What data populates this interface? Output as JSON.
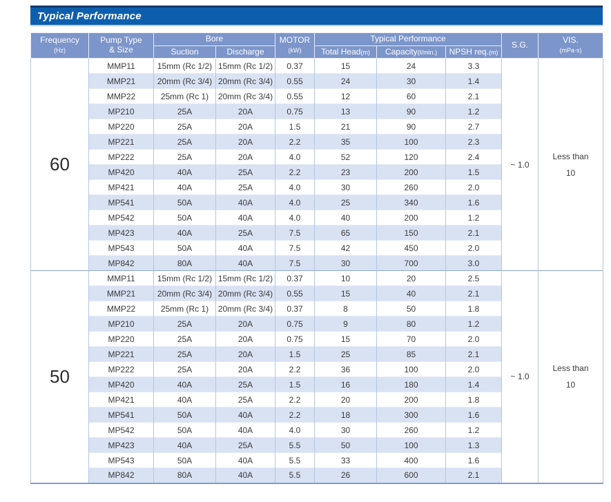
{
  "title_bar": {
    "text": "Typical Performance"
  },
  "table": {
    "headers": {
      "frequency": "Frequency",
      "frequency_unit": "(Hz)",
      "pump_type_line1": "Pump Type",
      "pump_type_line2": "& Size",
      "bore": "Bore",
      "suction": "Suction",
      "discharge": "Discharge",
      "motor": "MOTOR",
      "motor_unit": "(kW)",
      "typical_performance": "Typical Performance",
      "total_head": "Total Head",
      "total_head_unit": "(m)",
      "capacity": "Capacity",
      "capacity_unit": "(ℓ/min.)",
      "npsh": "NPSH req.",
      "npsh_unit": "(m)",
      "sg": "S.G.",
      "vis": "VIS.",
      "vis_unit": "(mPa·s)"
    },
    "columns": [
      "model",
      "suction",
      "discharge",
      "motor_kw",
      "total_head_m",
      "capacity_l_min",
      "npsh_req_m"
    ],
    "sections": [
      {
        "frequency": "60",
        "sg": "~ 1.0",
        "vis_line1": "Less than",
        "vis_line2": "10",
        "rows": [
          [
            "MMP11",
            "15mm (Rc 1/2)",
            "15mm (Rc 1/2)",
            "0.37",
            "15",
            "24",
            "3.3"
          ],
          [
            "MMP21",
            "20mm (Rc 3/4)",
            "20mm (Rc 3/4)",
            "0.55",
            "24",
            "30",
            "1.4"
          ],
          [
            "MMP22",
            "25mm (Rc 1)",
            "20mm (Rc 3/4)",
            "0.55",
            "12",
            "60",
            "2.1"
          ],
          [
            "MP210",
            "25A",
            "20A",
            "0.75",
            "13",
            "90",
            "1.2"
          ],
          [
            "MP220",
            "25A",
            "20A",
            "1.5",
            "21",
            "90",
            "2.7"
          ],
          [
            "MP221",
            "25A",
            "20A",
            "2.2",
            "35",
            "100",
            "2.3"
          ],
          [
            "MP222",
            "25A",
            "20A",
            "4.0",
            "52",
            "120",
            "2.4"
          ],
          [
            "MP420",
            "40A",
            "25A",
            "2.2",
            "23",
            "200",
            "1.5"
          ],
          [
            "MP421",
            "40A",
            "25A",
            "4.0",
            "30",
            "260",
            "2.0"
          ],
          [
            "MP541",
            "50A",
            "40A",
            "4.0",
            "25",
            "340",
            "1.6"
          ],
          [
            "MP542",
            "50A",
            "40A",
            "4.0",
            "40",
            "200",
            "1.2"
          ],
          [
            "MP423",
            "40A",
            "25A",
            "7.5",
            "65",
            "150",
            "2.1"
          ],
          [
            "MP543",
            "50A",
            "40A",
            "7.5",
            "42",
            "450",
            "2.0"
          ],
          [
            "MP842",
            "80A",
            "40A",
            "7.5",
            "30",
            "700",
            "3.0"
          ]
        ]
      },
      {
        "frequency": "50",
        "sg": "~ 1.0",
        "vis_line1": "Less than",
        "vis_line2": "10",
        "rows": [
          [
            "MMP11",
            "15mm (Rc 1/2)",
            "15mm (Rc 1/2)",
            "0.37",
            "10",
            "20",
            "2.5"
          ],
          [
            "MMP21",
            "20mm (Rc 3/4)",
            "20mm (Rc 3/4)",
            "0.55",
            "15",
            "40",
            "2.1"
          ],
          [
            "MMP22",
            "25mm (Rc 1)",
            "20mm (Rc 3/4)",
            "0.37",
            "8",
            "50",
            "1.8"
          ],
          [
            "MP210",
            "25A",
            "20A",
            "0.75",
            "9",
            "80",
            "1.2"
          ],
          [
            "MP220",
            "25A",
            "20A",
            "0.75",
            "15",
            "70",
            "2.0"
          ],
          [
            "MP221",
            "25A",
            "20A",
            "1.5",
            "25",
            "85",
            "2.1"
          ],
          [
            "MP222",
            "25A",
            "20A",
            "2.2",
            "36",
            "100",
            "2.0"
          ],
          [
            "MP420",
            "40A",
            "25A",
            "1.5",
            "16",
            "180",
            "1.4"
          ],
          [
            "MP421",
            "40A",
            "25A",
            "2.2",
            "20",
            "200",
            "1.8"
          ],
          [
            "MP541",
            "50A",
            "40A",
            "2.2",
            "18",
            "300",
            "1.6"
          ],
          [
            "MP542",
            "50A",
            "40A",
            "4.0",
            "30",
            "260",
            "1.2"
          ],
          [
            "MP423",
            "40A",
            "25A",
            "5.5",
            "50",
            "100",
            "1.3"
          ],
          [
            "MP543",
            "50A",
            "40A",
            "5.5",
            "33",
            "400",
            "1.6"
          ],
          [
            "MP842",
            "80A",
            "40A",
            "5.5",
            "26",
            "600",
            "2.1"
          ]
        ]
      }
    ]
  },
  "colors": {
    "title_bg": "#0d5fae",
    "title_border_top": "#14386e",
    "header_bg": "#7c95ca",
    "stripe_row": "#d9e2f3",
    "grid_line": "#b3c6e4",
    "section_divider": "#8ca6d5"
  }
}
